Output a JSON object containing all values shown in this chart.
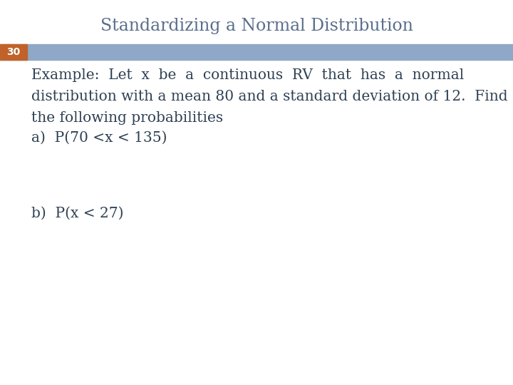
{
  "title": "Standardizing a Normal Distribution",
  "title_color": "#5a6e8c",
  "title_fontsize": 17,
  "slide_number": "30",
  "slide_number_bg": "#c0622a",
  "slide_number_color": "#ffffff",
  "header_bar_color": "#8fa8c8",
  "body_bg_color": "#ffffff",
  "line1": "Example:  Let  x  be  a  continuous  RV  that  has  a  normal",
  "line2": "distribution with a mean 80 and a standard deviation of 12.  Find",
  "line3": "the following probabilities",
  "line4": "a)  P(70 <x < 135)",
  "line5": "b)  P(x < 27)",
  "body_text_color": "#2e4053",
  "body_fontsize": 14.5,
  "fig_bg_color": "#ffffff",
  "fig_width": 7.2,
  "fig_height": 5.4,
  "dpi": 100
}
